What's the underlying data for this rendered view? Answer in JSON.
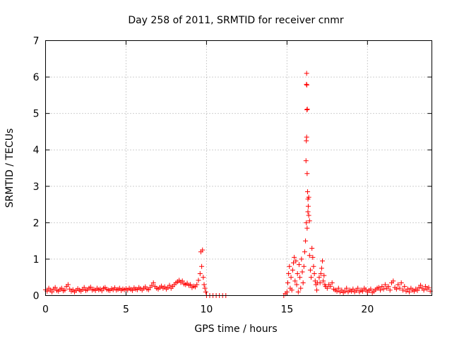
{
  "chart_data": {
    "type": "scatter",
    "title": "Day 258 of 2011, SRMTID for receiver cnmr",
    "xlabel": "GPS time / hours",
    "ylabel": "SRMTID / TECUs",
    "xlim": [
      0,
      24
    ],
    "ylim": [
      0,
      7
    ],
    "xticks": [
      0,
      5,
      10,
      15,
      20
    ],
    "yticks": [
      0,
      1,
      2,
      3,
      4,
      5,
      6,
      7
    ],
    "grid": true,
    "marker": "+",
    "color": "#ff0000",
    "series": [
      {
        "name": "SRMTID",
        "points": [
          [
            0.0,
            0.16
          ],
          [
            0.1,
            0.12
          ],
          [
            0.2,
            0.2
          ],
          [
            0.3,
            0.15
          ],
          [
            0.4,
            0.1
          ],
          [
            0.5,
            0.18
          ],
          [
            0.6,
            0.22
          ],
          [
            0.7,
            0.14
          ],
          [
            0.8,
            0.12
          ],
          [
            0.9,
            0.17
          ],
          [
            1.0,
            0.2
          ],
          [
            1.1,
            0.13
          ],
          [
            1.2,
            0.15
          ],
          [
            1.3,
            0.25
          ],
          [
            1.4,
            0.3
          ],
          [
            1.5,
            0.18
          ],
          [
            1.6,
            0.12
          ],
          [
            1.7,
            0.16
          ],
          [
            1.8,
            0.1
          ],
          [
            1.9,
            0.14
          ],
          [
            2.0,
            0.19
          ],
          [
            2.1,
            0.15
          ],
          [
            2.2,
            0.12
          ],
          [
            2.3,
            0.17
          ],
          [
            2.4,
            0.22
          ],
          [
            2.5,
            0.14
          ],
          [
            2.6,
            0.16
          ],
          [
            2.7,
            0.2
          ],
          [
            2.8,
            0.23
          ],
          [
            2.9,
            0.15
          ],
          [
            3.0,
            0.17
          ],
          [
            3.1,
            0.14
          ],
          [
            3.2,
            0.2
          ],
          [
            3.3,
            0.16
          ],
          [
            3.4,
            0.18
          ],
          [
            3.5,
            0.13
          ],
          [
            3.6,
            0.2
          ],
          [
            3.7,
            0.22
          ],
          [
            3.8,
            0.17
          ],
          [
            3.9,
            0.15
          ],
          [
            4.0,
            0.14
          ],
          [
            4.1,
            0.19
          ],
          [
            4.2,
            0.16
          ],
          [
            4.3,
            0.21
          ],
          [
            4.4,
            0.15
          ],
          [
            4.5,
            0.17
          ],
          [
            4.6,
            0.2
          ],
          [
            4.7,
            0.14
          ],
          [
            4.8,
            0.18
          ],
          [
            4.9,
            0.16
          ],
          [
            5.0,
            0.19
          ],
          [
            5.1,
            0.15
          ],
          [
            5.2,
            0.2
          ],
          [
            5.3,
            0.17
          ],
          [
            5.4,
            0.14
          ],
          [
            5.5,
            0.21
          ],
          [
            5.6,
            0.18
          ],
          [
            5.7,
            0.16
          ],
          [
            5.8,
            0.22
          ],
          [
            5.9,
            0.19
          ],
          [
            6.0,
            0.15
          ],
          [
            6.1,
            0.2
          ],
          [
            6.2,
            0.24
          ],
          [
            6.3,
            0.18
          ],
          [
            6.4,
            0.16
          ],
          [
            6.5,
            0.22
          ],
          [
            6.6,
            0.28
          ],
          [
            6.7,
            0.35
          ],
          [
            6.8,
            0.25
          ],
          [
            6.9,
            0.2
          ],
          [
            7.0,
            0.18
          ],
          [
            7.1,
            0.22
          ],
          [
            7.2,
            0.26
          ],
          [
            7.3,
            0.2
          ],
          [
            7.4,
            0.24
          ],
          [
            7.5,
            0.18
          ],
          [
            7.6,
            0.22
          ],
          [
            7.7,
            0.28
          ],
          [
            7.8,
            0.2
          ],
          [
            7.9,
            0.25
          ],
          [
            8.0,
            0.3
          ],
          [
            8.1,
            0.35
          ],
          [
            8.2,
            0.38
          ],
          [
            8.3,
            0.42
          ],
          [
            8.4,
            0.36
          ],
          [
            8.5,
            0.4
          ],
          [
            8.6,
            0.32
          ],
          [
            8.7,
            0.3
          ],
          [
            8.8,
            0.34
          ],
          [
            8.9,
            0.28
          ],
          [
            9.0,
            0.3
          ],
          [
            9.1,
            0.22
          ],
          [
            9.2,
            0.26
          ],
          [
            9.3,
            0.24
          ],
          [
            9.4,
            0.3
          ],
          [
            9.5,
            0.42
          ],
          [
            9.6,
            0.6
          ],
          [
            9.65,
            1.2
          ],
          [
            9.7,
            0.8
          ],
          [
            9.75,
            1.25
          ],
          [
            9.8,
            0.5
          ],
          [
            9.85,
            0.3
          ],
          [
            9.9,
            0.2
          ],
          [
            9.95,
            0.1
          ],
          [
            10.0,
            0.0
          ],
          [
            10.2,
            0.0
          ],
          [
            10.4,
            0.0
          ],
          [
            10.6,
            0.0
          ],
          [
            10.8,
            0.0
          ],
          [
            11.0,
            0.0
          ],
          [
            11.2,
            0.0
          ],
          [
            14.8,
            0.0
          ],
          [
            14.9,
            0.05
          ],
          [
            15.0,
            0.1
          ],
          [
            15.05,
            0.35
          ],
          [
            15.1,
            0.6
          ],
          [
            15.15,
            0.8
          ],
          [
            15.2,
            0.2
          ],
          [
            15.25,
            0.5
          ],
          [
            15.3,
            0.15
          ],
          [
            15.35,
            0.7
          ],
          [
            15.4,
            0.9
          ],
          [
            15.45,
            1.05
          ],
          [
            15.5,
            0.4
          ],
          [
            15.55,
            0.95
          ],
          [
            15.6,
            0.3
          ],
          [
            15.65,
            0.6
          ],
          [
            15.7,
            0.1
          ],
          [
            15.75,
            0.85
          ],
          [
            15.8,
            0.5
          ],
          [
            15.85,
            0.2
          ],
          [
            15.9,
            1.0
          ],
          [
            15.95,
            0.65
          ],
          [
            16.0,
            0.35
          ],
          [
            16.05,
            0.8
          ],
          [
            16.1,
            1.2
          ],
          [
            16.15,
            1.5
          ],
          [
            16.2,
            2.0
          ],
          [
            16.25,
            1.85
          ],
          [
            16.3,
            2.3
          ],
          [
            16.35,
            2.7
          ],
          [
            16.4,
            1.1
          ],
          [
            16.45,
            0.7
          ],
          [
            16.5,
            0.5
          ],
          [
            16.55,
            1.3
          ],
          [
            16.6,
            1.05
          ],
          [
            16.65,
            0.8
          ],
          [
            16.7,
            0.6
          ],
          [
            16.75,
            0.4
          ],
          [
            16.8,
            0.3
          ],
          [
            16.85,
            0.15
          ],
          [
            16.22,
            6.1
          ],
          [
            16.21,
            5.8
          ],
          [
            16.23,
            5.78
          ],
          [
            16.24,
            5.1
          ],
          [
            16.26,
            5.12
          ],
          [
            16.22,
            4.35
          ],
          [
            16.2,
            4.25
          ],
          [
            16.18,
            3.7
          ],
          [
            16.25,
            3.35
          ],
          [
            16.28,
            2.85
          ],
          [
            16.3,
            2.65
          ],
          [
            16.32,
            2.45
          ],
          [
            16.35,
            2.2
          ],
          [
            16.4,
            2.05
          ],
          [
            16.9,
            0.35
          ],
          [
            17.0,
            0.5
          ],
          [
            17.05,
            0.35
          ],
          [
            17.1,
            0.6
          ],
          [
            17.15,
            0.75
          ],
          [
            17.2,
            0.95
          ],
          [
            17.25,
            0.4
          ],
          [
            17.3,
            0.55
          ],
          [
            17.35,
            0.3
          ],
          [
            17.4,
            0.25
          ],
          [
            17.5,
            0.2
          ],
          [
            17.6,
            0.3
          ],
          [
            17.7,
            0.25
          ],
          [
            17.8,
            0.35
          ],
          [
            17.9,
            0.18
          ],
          [
            18.0,
            0.15
          ],
          [
            18.1,
            0.12
          ],
          [
            18.2,
            0.2
          ],
          [
            18.3,
            0.1
          ],
          [
            18.4,
            0.15
          ],
          [
            18.5,
            0.08
          ],
          [
            18.6,
            0.12
          ],
          [
            18.7,
            0.2
          ],
          [
            18.8,
            0.1
          ],
          [
            18.9,
            0.15
          ],
          [
            19.0,
            0.12
          ],
          [
            19.1,
            0.18
          ],
          [
            19.2,
            0.1
          ],
          [
            19.3,
            0.14
          ],
          [
            19.4,
            0.2
          ],
          [
            19.5,
            0.1
          ],
          [
            19.6,
            0.15
          ],
          [
            19.7,
            0.12
          ],
          [
            19.8,
            0.2
          ],
          [
            19.9,
            0.16
          ],
          [
            20.0,
            0.1
          ],
          [
            20.1,
            0.14
          ],
          [
            20.2,
            0.18
          ],
          [
            20.3,
            0.08
          ],
          [
            20.4,
            0.12
          ],
          [
            20.5,
            0.16
          ],
          [
            20.6,
            0.2
          ],
          [
            20.7,
            0.22
          ],
          [
            20.8,
            0.15
          ],
          [
            20.9,
            0.25
          ],
          [
            21.0,
            0.18
          ],
          [
            21.1,
            0.3
          ],
          [
            21.2,
            0.2
          ],
          [
            21.3,
            0.25
          ],
          [
            21.4,
            0.15
          ],
          [
            21.5,
            0.35
          ],
          [
            21.6,
            0.4
          ],
          [
            21.7,
            0.22
          ],
          [
            21.8,
            0.18
          ],
          [
            21.9,
            0.3
          ],
          [
            22.0,
            0.2
          ],
          [
            22.1,
            0.35
          ],
          [
            22.2,
            0.15
          ],
          [
            22.3,
            0.25
          ],
          [
            22.4,
            0.12
          ],
          [
            22.5,
            0.18
          ],
          [
            22.6,
            0.1
          ],
          [
            22.7,
            0.2
          ],
          [
            22.8,
            0.15
          ],
          [
            22.9,
            0.12
          ],
          [
            23.0,
            0.18
          ],
          [
            23.1,
            0.14
          ],
          [
            23.2,
            0.22
          ],
          [
            23.3,
            0.28
          ],
          [
            23.4,
            0.2
          ],
          [
            23.5,
            0.15
          ],
          [
            23.6,
            0.25
          ],
          [
            23.7,
            0.18
          ],
          [
            23.8,
            0.22
          ],
          [
            23.9,
            0.12
          ]
        ]
      }
    ]
  }
}
